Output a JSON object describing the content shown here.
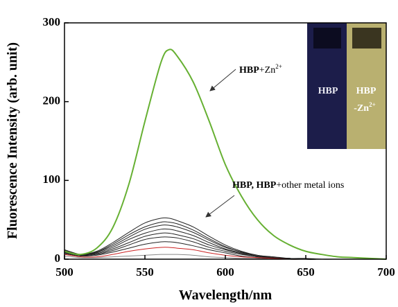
{
  "chart_data": {
    "type": "line",
    "xlabel": "Wavelength/nm",
    "ylabel": "Fluorescence Intensity (arb. unit)",
    "x": [
      500,
      510,
      520,
      530,
      540,
      550,
      560,
      565,
      570,
      580,
      590,
      600,
      610,
      620,
      630,
      640,
      650,
      660,
      670,
      680,
      690,
      700
    ],
    "xlim": [
      500,
      700
    ],
    "xticks": [
      500,
      550,
      600,
      650,
      700
    ],
    "ylim": [
      0,
      300
    ],
    "yticks": [
      0,
      100,
      200,
      300
    ],
    "series": [
      {
        "color": "#888888",
        "values": [
          4,
          2,
          2,
          3,
          4,
          5,
          6,
          6,
          6,
          5,
          3,
          2,
          1,
          1,
          0,
          0,
          0,
          0,
          0,
          0,
          0,
          0
        ]
      },
      {
        "color": "#222222",
        "values": [
          7,
          4,
          5,
          9,
          14,
          19,
          22,
          22,
          21,
          17,
          12,
          8,
          4,
          2,
          1,
          0,
          0,
          0,
          0,
          0,
          0,
          0
        ]
      },
      {
        "color": "#222222",
        "values": [
          9,
          5,
          6,
          11,
          18,
          25,
          28,
          28,
          27,
          22,
          15,
          10,
          6,
          3,
          1,
          1,
          0,
          0,
          0,
          0,
          0,
          0
        ]
      },
      {
        "color": "#222222",
        "values": [
          12,
          6,
          7,
          13,
          21,
          29,
          33,
          33,
          31,
          26,
          18,
          12,
          7,
          3,
          2,
          1,
          0,
          0,
          0,
          0,
          0,
          0
        ]
      },
      {
        "color": "#222222",
        "values": [
          8,
          5,
          8,
          15,
          25,
          33,
          38,
          38,
          36,
          30,
          21,
          13,
          8,
          4,
          2,
          1,
          0,
          0,
          0,
          0,
          0,
          0
        ]
      },
      {
        "color": "#222222",
        "values": [
          11,
          6,
          9,
          17,
          28,
          38,
          43,
          43,
          41,
          34,
          24,
          15,
          9,
          4,
          2,
          1,
          0,
          0,
          0,
          0,
          0,
          0
        ]
      },
      {
        "color": "#222222",
        "values": [
          9,
          6,
          9,
          19,
          31,
          41,
          47,
          47,
          45,
          37,
          26,
          16,
          9,
          5,
          2,
          1,
          0,
          0,
          0,
          0,
          0,
          0
        ]
      },
      {
        "color": "#222222",
        "values": [
          10,
          6,
          10,
          21,
          34,
          46,
          52,
          52,
          49,
          41,
          29,
          18,
          10,
          5,
          3,
          1,
          1,
          0,
          0,
          0,
          0,
          0
        ]
      },
      {
        "color": "#cc2222",
        "values": [
          6,
          3,
          3,
          6,
          10,
          13,
          15,
          15,
          14,
          12,
          8,
          5,
          3,
          2,
          1,
          0,
          0,
          0,
          0,
          0,
          0,
          0
        ]
      },
      {
        "color": "#66b032",
        "values": [
          10,
          6,
          14,
          40,
          95,
          175,
          250,
          266,
          258,
          225,
          175,
          120,
          80,
          50,
          30,
          18,
          10,
          6,
          3,
          2,
          1,
          0
        ]
      }
    ],
    "annotations": {
      "zn": {
        "bold": "HBP",
        "text": "+Zn",
        "sup": "2+"
      },
      "other": {
        "bold": "HBP, HBP",
        "text": "+other metal ions"
      }
    },
    "inset": {
      "left": "HBP",
      "right_top": "HBP",
      "right_bottom": "-Zn",
      "right_sup": "2+"
    }
  }
}
